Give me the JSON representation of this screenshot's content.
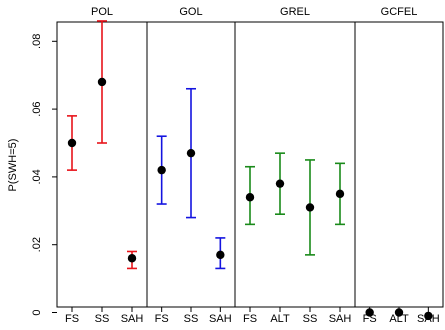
{
  "chart_data": {
    "type": "scatter",
    "subtype": "point-with-error-bars, faceted panels",
    "ylabel": "P(SWH=5)",
    "ylim": [
      -0.004,
      0.095
    ],
    "yticks": [
      0,
      0.02,
      0.04,
      0.06,
      0.08
    ],
    "ytick_labels": [
      "0",
      ".02",
      ".04",
      ".06",
      ".08"
    ],
    "grid": false,
    "legend": "none",
    "panels": [
      {
        "title": "POL",
        "color": "#e8141b",
        "categories": [
          "FS",
          "SS",
          "SAH"
        ],
        "values": [
          0.05,
          0.068,
          0.016
        ],
        "lower": [
          0.042,
          0.05,
          0.013
        ],
        "upper": [
          0.058,
          0.086,
          0.018
        ]
      },
      {
        "title": "GOL",
        "color": "#1414e0",
        "categories": [
          "FS",
          "SS",
          "SAH"
        ],
        "values": [
          0.042,
          0.047,
          0.017
        ],
        "lower": [
          0.032,
          0.028,
          0.013
        ],
        "upper": [
          0.052,
          0.066,
          0.022
        ]
      },
      {
        "title": "GREL",
        "color": "#1a8a1a",
        "categories": [
          "FS",
          "ALT",
          "SS",
          "SAH"
        ],
        "values": [
          0.034,
          0.038,
          0.031,
          0.035
        ],
        "lower": [
          0.026,
          0.029,
          0.017,
          0.026
        ],
        "upper": [
          0.043,
          0.047,
          0.045,
          0.044
        ]
      },
      {
        "title": "GCFEL",
        "color": "#000000",
        "categories": [
          "FS",
          "ALT",
          "SAH"
        ],
        "values": [
          0.0,
          0.0,
          -0.001
        ],
        "lower": [
          0.0,
          0.0,
          -0.001
        ],
        "upper": [
          0.0,
          0.0,
          -0.001
        ]
      }
    ]
  }
}
